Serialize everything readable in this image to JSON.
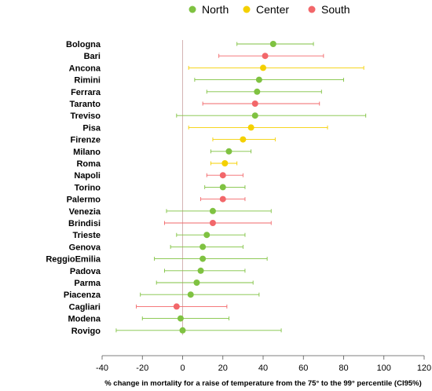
{
  "chart_data": {
    "type": "scatter",
    "subtype": "forest-plot",
    "xlabel": "% change in mortality for a raise of temperature from the 75° to the 99° percentile (CI95%)",
    "xlim": [
      -40,
      120
    ],
    "xticks": [
      -40,
      -20,
      0,
      20,
      40,
      60,
      80,
      100,
      120
    ],
    "reference_line_x": 0,
    "grid": false,
    "legend_position": "top",
    "groups": [
      {
        "name": "North",
        "color": "#7fc241"
      },
      {
        "name": "Center",
        "color": "#f4d000"
      },
      {
        "name": "South",
        "color": "#f2676a"
      }
    ],
    "rows": [
      {
        "city": "Bologna",
        "group": "North",
        "estimate": 45,
        "lower": 27,
        "upper": 65
      },
      {
        "city": "Bari",
        "group": "South",
        "estimate": 41,
        "lower": 18,
        "upper": 70
      },
      {
        "city": "Ancona",
        "group": "Center",
        "estimate": 40,
        "lower": 3,
        "upper": 90
      },
      {
        "city": "Rimini",
        "group": "North",
        "estimate": 38,
        "lower": 6,
        "upper": 80
      },
      {
        "city": "Ferrara",
        "group": "North",
        "estimate": 37,
        "lower": 12,
        "upper": 69
      },
      {
        "city": "Taranto",
        "group": "South",
        "estimate": 36,
        "lower": 10,
        "upper": 68
      },
      {
        "city": "Treviso",
        "group": "North",
        "estimate": 36,
        "lower": -3,
        "upper": 91
      },
      {
        "city": "Pisa",
        "group": "Center",
        "estimate": 34,
        "lower": 3,
        "upper": 72
      },
      {
        "city": "Firenze",
        "group": "Center",
        "estimate": 30,
        "lower": 15,
        "upper": 46
      },
      {
        "city": "Milano",
        "group": "North",
        "estimate": 23,
        "lower": 14,
        "upper": 34
      },
      {
        "city": "Roma",
        "group": "Center",
        "estimate": 21,
        "lower": 14,
        "upper": 27
      },
      {
        "city": "Napoli",
        "group": "South",
        "estimate": 20,
        "lower": 12,
        "upper": 30
      },
      {
        "city": "Torino",
        "group": "North",
        "estimate": 20,
        "lower": 11,
        "upper": 31
      },
      {
        "city": "Palermo",
        "group": "South",
        "estimate": 20,
        "lower": 9,
        "upper": 31
      },
      {
        "city": "Venezia",
        "group": "North",
        "estimate": 15,
        "lower": -8,
        "upper": 44
      },
      {
        "city": "Brindisi",
        "group": "South",
        "estimate": 15,
        "lower": -9,
        "upper": 44
      },
      {
        "city": "Trieste",
        "group": "North",
        "estimate": 12,
        "lower": -3,
        "upper": 31
      },
      {
        "city": "Genova",
        "group": "North",
        "estimate": 10,
        "lower": -6,
        "upper": 30
      },
      {
        "city": "ReggioEmilia",
        "group": "North",
        "estimate": 10,
        "lower": -14,
        "upper": 42
      },
      {
        "city": "Padova",
        "group": "North",
        "estimate": 9,
        "lower": -9,
        "upper": 31
      },
      {
        "city": "Parma",
        "group": "North",
        "estimate": 7,
        "lower": -13,
        "upper": 35
      },
      {
        "city": "Piacenza",
        "group": "North",
        "estimate": 4,
        "lower": -21,
        "upper": 38
      },
      {
        "city": "Cagliari",
        "group": "South",
        "estimate": -3,
        "lower": -23,
        "upper": 22
      },
      {
        "city": "Modena",
        "group": "North",
        "estimate": -1,
        "lower": -20,
        "upper": 23
      },
      {
        "city": "Rovigo",
        "group": "North",
        "estimate": 0,
        "lower": -33,
        "upper": 49
      }
    ]
  }
}
